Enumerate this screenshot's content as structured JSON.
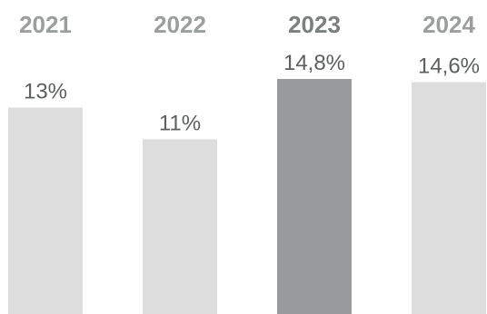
{
  "chart_data": {
    "type": "bar",
    "categories": [
      "2021",
      "2022",
      "2023",
      "2024"
    ],
    "values": [
      13,
      11,
      14.8,
      14.6
    ],
    "value_labels": [
      "13%",
      "11%",
      "14,8%",
      "14,6%"
    ],
    "highlight_index": 2,
    "ylim": [
      0,
      14.8
    ],
    "grid": false,
    "legend": "none",
    "title": "",
    "xlabel": "",
    "ylabel": "",
    "colors": {
      "bar": "#dcdddc",
      "bar_highlight": "#979b9b",
      "year_text": "#9b9e9e",
      "year_text_highlight": "#7c7f80",
      "value_text": "#5c5f60"
    }
  }
}
